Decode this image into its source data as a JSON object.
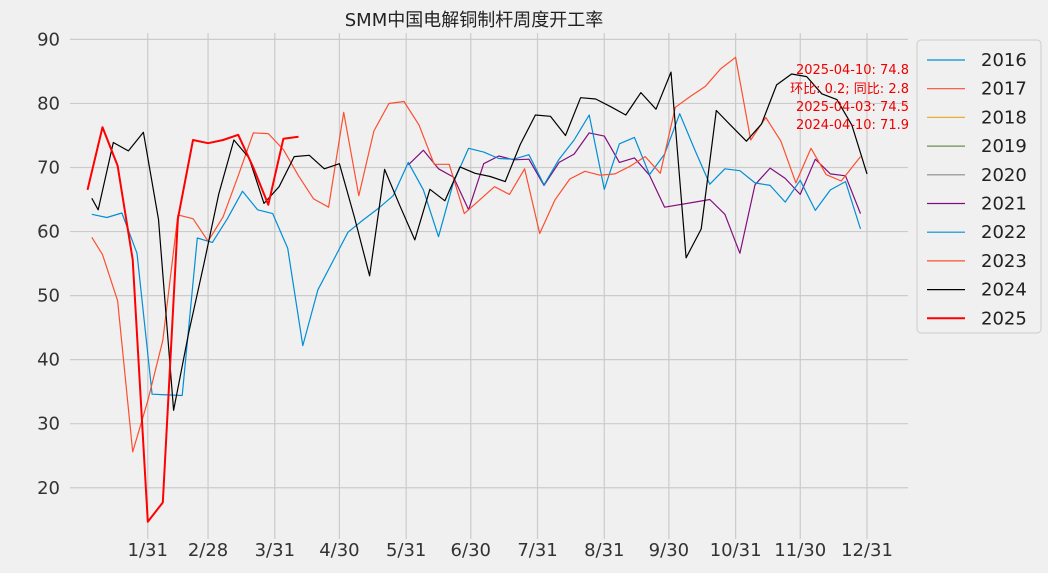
{
  "chart_data": {
    "type": "line",
    "title": "SMM中国电解铜制杆周度开工率",
    "xlabel": "",
    "ylabel": "",
    "ylim": [
      12,
      91
    ],
    "yticks": [
      20,
      30,
      40,
      50,
      60,
      70,
      80,
      90
    ],
    "x_unit": "day_of_year",
    "xlim": [
      0,
      365
    ],
    "xticks": [
      {
        "label": "1/31",
        "value": 31
      },
      {
        "label": "2/28",
        "value": 59
      },
      {
        "label": "3/31",
        "value": 90
      },
      {
        "label": "4/30",
        "value": 120
      },
      {
        "label": "5/31",
        "value": 151
      },
      {
        "label": "6/30",
        "value": 181
      },
      {
        "label": "7/31",
        "value": 212
      },
      {
        "label": "8/31",
        "value": 243
      },
      {
        "label": "9/30",
        "value": 273
      },
      {
        "label": "10/31",
        "value": 304
      },
      {
        "label": "11/30",
        "value": 334
      },
      {
        "label": "12/31",
        "value": 365
      }
    ],
    "grid": true,
    "legend_position": "right",
    "annotations": [
      "2025-04-10: 74.8",
      "环比: 0.2; 同比: 2.8",
      "2025-04-03: 74.5",
      "2024-04-10: 71.9"
    ],
    "series": [
      {
        "name": "2016",
        "color": "#008fd5",
        "width": 1.2,
        "x": [],
        "y": []
      },
      {
        "name": "2017",
        "color": "#fc4f30",
        "width": 1.2,
        "x": [],
        "y": []
      },
      {
        "name": "2018",
        "color": "#e5ae38",
        "width": 1.2,
        "x": [],
        "y": []
      },
      {
        "name": "2019",
        "color": "#6d904f",
        "width": 1.2,
        "x": [],
        "y": []
      },
      {
        "name": "2020",
        "color": "#8b8b8b",
        "width": 1.2,
        "x": [],
        "y": []
      },
      {
        "name": "2021",
        "color": "#810f7c",
        "width": 1.2,
        "x": [
          152,
          159,
          166,
          173,
          180,
          187,
          194,
          201,
          208,
          215,
          222,
          229,
          236,
          243,
          250,
          257,
          264,
          271,
          285,
          292,
          299,
          306,
          313,
          320,
          327,
          334,
          341,
          348,
          355,
          362
        ],
        "y": [
          70.4,
          72.7,
          69.8,
          68.5,
          63.4,
          70.6,
          71.8,
          71.2,
          71.3,
          67.2,
          70.8,
          72.1,
          75.4,
          74.9,
          70.8,
          71.5,
          68.8,
          63.8,
          64.6,
          65.0,
          62.7,
          56.6,
          67.3,
          69.9,
          68.3,
          65.8,
          71.3,
          69.0,
          68.7,
          62.8
        ]
      },
      {
        "name": "2022",
        "color": "#008fd5",
        "width": 1.2,
        "x": [
          5,
          12,
          19,
          26,
          33,
          40,
          47,
          54,
          61,
          68,
          75,
          82,
          89,
          96,
          103,
          110,
          117,
          124,
          131,
          138,
          145,
          152,
          159,
          166,
          173,
          180,
          187,
          194,
          201,
          208,
          215,
          222,
          229,
          236,
          243,
          250,
          257,
          264,
          271,
          278,
          285,
          292,
          299,
          306,
          313,
          320,
          327,
          334,
          341,
          348,
          355,
          362
        ],
        "y": [
          62.7,
          62.2,
          62.9,
          56.6,
          34.6,
          34.5,
          34.4,
          59.0,
          58.3,
          62.0,
          66.3,
          63.4,
          62.8,
          57.4,
          42.2,
          50.9,
          55.4,
          59.9,
          61.8,
          63.6,
          65.6,
          70.8,
          66.5,
          59.2,
          67.7,
          73.0,
          72.4,
          71.4,
          71.3,
          72.0,
          67.3,
          71.3,
          74.3,
          78.2,
          66.6,
          73.7,
          74.7,
          68.9,
          72.1,
          78.4,
          72.8,
          67.4,
          69.8,
          69.5,
          67.6,
          67.2,
          64.6,
          68.0,
          63.3,
          66.5,
          67.8,
          60.4
        ]
      },
      {
        "name": "2023",
        "color": "#fc4f30",
        "width": 1.2,
        "x": [
          5,
          10,
          17,
          24,
          31,
          38,
          45,
          52,
          59,
          66,
          73,
          80,
          87,
          94,
          101,
          108,
          115,
          122,
          129,
          136,
          143,
          150,
          157,
          164,
          171,
          178,
          185,
          192,
          199,
          206,
          213,
          220,
          227,
          234,
          241,
          248,
          255,
          262,
          269,
          276,
          283,
          290,
          297,
          304,
          311,
          318,
          325,
          332,
          339,
          346,
          353,
          362
        ],
        "y": [
          59.1,
          56.4,
          49.2,
          25.6,
          33.6,
          43.0,
          62.6,
          62.0,
          58.5,
          62.3,
          68.7,
          75.4,
          75.3,
          72.8,
          68.7,
          65.1,
          63.8,
          78.6,
          65.6,
          75.7,
          80.0,
          80.3,
          76.6,
          70.5,
          70.5,
          62.8,
          64.9,
          67.0,
          65.8,
          69.8,
          59.7,
          64.9,
          68.2,
          69.4,
          68.8,
          69.0,
          70.2,
          71.7,
          69.1,
          79.4,
          81.1,
          82.7,
          85.4,
          87.2,
          74.3,
          77.8,
          74.1,
          67.6,
          73.0,
          68.9,
          67.9,
          71.7
        ]
      },
      {
        "name": "2024",
        "color": "#000000",
        "width": 1.2,
        "x": [
          5,
          8,
          15,
          22,
          29,
          36,
          43,
          50,
          57,
          64,
          71,
          78,
          85,
          92,
          99,
          106,
          113,
          120,
          127,
          134,
          141,
          148,
          155,
          162,
          169,
          176,
          183,
          190,
          197,
          204,
          211,
          218,
          225,
          232,
          239,
          246,
          253,
          260,
          267,
          274,
          281,
          288,
          295,
          302,
          309,
          316,
          323,
          330,
          337,
          344,
          351,
          358,
          365
        ],
        "y": [
          65.2,
          63.4,
          73.9,
          72.6,
          75.5,
          61.9,
          32.1,
          44.2,
          54.8,
          65.9,
          74.3,
          71.5,
          64.4,
          67.0,
          71.7,
          71.9,
          69.8,
          70.6,
          62.2,
          53.1,
          69.7,
          64.1,
          58.7,
          66.6,
          64.8,
          70.1,
          69.1,
          68.6,
          67.8,
          73.6,
          78.2,
          78.0,
          75.0,
          80.9,
          80.7,
          79.5,
          78.2,
          81.7,
          79.1,
          84.9,
          55.9,
          60.4,
          78.9,
          76.5,
          74.1,
          76.8,
          82.9,
          84.6,
          84.2,
          81.5,
          80.6,
          76.6,
          69.0
        ]
      },
      {
        "name": "2025",
        "color": "#ff0000",
        "width": 2.0,
        "x": [
          3,
          10,
          17,
          24,
          31,
          38,
          45,
          52,
          59,
          66,
          73,
          80,
          87,
          94,
          101
        ],
        "y": [
          66.5,
          76.3,
          70.3,
          55.6,
          14.7,
          17.7,
          62.0,
          74.3,
          73.8,
          74.3,
          75.1,
          70.0,
          64.2,
          74.5,
          74.8
        ]
      }
    ]
  }
}
